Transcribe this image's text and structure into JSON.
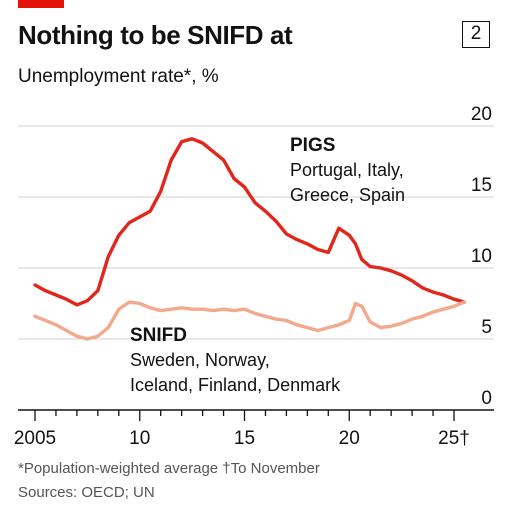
{
  "header": {
    "title": "Nothing to be SNIFD at",
    "badge": "2",
    "subtitle": "Unemployment rate*, %"
  },
  "footnotes": {
    "note": "*Population-weighted average    †To November",
    "sources": "Sources: OECD; UN"
  },
  "colors": {
    "pigs": "#e3261c",
    "snifd": "#f2a98c",
    "grid": "#d0d0d0",
    "brand_red": "#e3120b",
    "text": "#121212"
  },
  "chart_data": {
    "type": "line",
    "title": "Nothing to be SNIFD at",
    "ylabel": "Unemployment rate*, %",
    "ylim": [
      0,
      20
    ],
    "y_ticks": [
      0,
      5,
      10,
      15,
      20
    ],
    "y_tick_labels": [
      "0",
      "5",
      "10",
      "15",
      "20"
    ],
    "xlim": [
      2005,
      2025.9
    ],
    "x_ticks": [
      2005,
      2010,
      2015,
      2020,
      2025
    ],
    "x_tick_labels": [
      "2005",
      "10",
      "15",
      "20",
      "25†"
    ],
    "grid": true,
    "series": [
      {
        "name": "PIGS",
        "label_title": "PIGS",
        "label_lines": [
          "Portugal, Italy,",
          "Greece, Spain"
        ],
        "x": [
          2005.0,
          2005.5,
          2006.0,
          2006.5,
          2007.0,
          2007.5,
          2008.0,
          2008.5,
          2009.0,
          2009.5,
          2010.0,
          2010.5,
          2011.0,
          2011.5,
          2012.0,
          2012.5,
          2013.0,
          2013.5,
          2014.0,
          2014.5,
          2015.0,
          2015.5,
          2016.0,
          2016.5,
          2017.0,
          2017.5,
          2018.0,
          2018.5,
          2019.0,
          2019.5,
          2020.0,
          2020.3,
          2020.6,
          2021.0,
          2021.5,
          2022.0,
          2022.5,
          2023.0,
          2023.5,
          2024.0,
          2024.5,
          2025.0,
          2025.5
        ],
        "values": [
          8.8,
          8.4,
          8.1,
          7.8,
          7.4,
          7.7,
          8.4,
          10.8,
          12.3,
          13.2,
          13.6,
          14.0,
          15.4,
          17.6,
          18.9,
          19.1,
          18.8,
          18.2,
          17.6,
          16.3,
          15.7,
          14.6,
          14.0,
          13.3,
          12.4,
          12.0,
          11.7,
          11.3,
          11.1,
          12.8,
          12.3,
          11.7,
          10.6,
          10.1,
          10.0,
          9.8,
          9.5,
          9.1,
          8.6,
          8.3,
          8.1,
          7.8,
          7.6
        ]
      },
      {
        "name": "SNIFD",
        "label_title": "SNIFD",
        "label_lines": [
          "Sweden, Norway,",
          "Iceland, Finland, Denmark"
        ],
        "x": [
          2005.0,
          2005.5,
          2006.0,
          2006.5,
          2007.0,
          2007.5,
          2008.0,
          2008.5,
          2009.0,
          2009.5,
          2010.0,
          2010.5,
          2011.0,
          2011.5,
          2012.0,
          2012.5,
          2013.0,
          2013.5,
          2014.0,
          2014.5,
          2015.0,
          2015.5,
          2016.0,
          2016.5,
          2017.0,
          2017.5,
          2018.0,
          2018.5,
          2019.0,
          2019.5,
          2020.0,
          2020.3,
          2020.6,
          2021.0,
          2021.5,
          2022.0,
          2022.5,
          2023.0,
          2023.5,
          2024.0,
          2024.5,
          2025.0,
          2025.5
        ],
        "values": [
          6.6,
          6.3,
          6.0,
          5.6,
          5.2,
          5.0,
          5.2,
          5.8,
          7.1,
          7.6,
          7.5,
          7.2,
          7.0,
          7.1,
          7.2,
          7.1,
          7.1,
          7.0,
          7.1,
          7.0,
          7.1,
          6.8,
          6.6,
          6.4,
          6.3,
          6.0,
          5.8,
          5.6,
          5.8,
          6.0,
          6.3,
          7.5,
          7.3,
          6.2,
          5.8,
          5.9,
          6.1,
          6.4,
          6.6,
          6.9,
          7.1,
          7.3,
          7.6
        ]
      }
    ]
  }
}
